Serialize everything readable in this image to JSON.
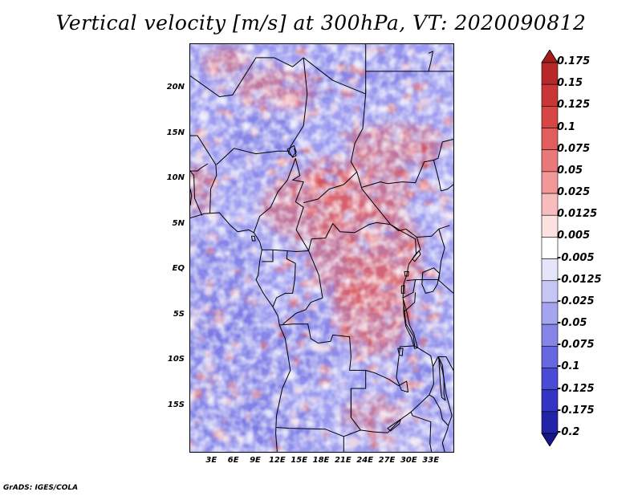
{
  "title": "Vertical velocity [m/s] at 300hPa, VT: 2020090812",
  "footer": "GrADS: IGES/COLA",
  "map": {
    "projection": "lat-lon",
    "lon_range": [
      0,
      36
    ],
    "lat_range": [
      -20,
      25
    ],
    "lat_labels": [
      "20N",
      "15N",
      "10N",
      "5N",
      "EQ",
      "5S",
      "10S",
      "15S"
    ],
    "lat_values": [
      20,
      15,
      10,
      5,
      0,
      -5,
      -10,
      -15
    ],
    "lon_labels": [
      "3E",
      "6E",
      "9E",
      "12E",
      "15E",
      "18E",
      "21E",
      "24E",
      "27E",
      "30E",
      "33E"
    ],
    "lon_values": [
      3,
      6,
      9,
      12,
      15,
      18,
      21,
      24,
      27,
      30,
      33
    ],
    "field": "vertical velocity (shaded)",
    "overlays": [
      "coastlines",
      "country borders",
      "lakes"
    ]
  },
  "colorbar": {
    "orientation": "vertical",
    "position": "right",
    "labels": [
      "0.175",
      "0.15",
      "0.125",
      "0.1",
      "0.075",
      "0.05",
      "0.025",
      "0.0125",
      "0.005",
      "-0.005",
      "-0.0125",
      "-0.025",
      "-0.05",
      "-0.075",
      "-0.1",
      "-0.125",
      "-0.175",
      "-0.2"
    ],
    "colors": [
      "#a51c1c",
      "#b82828",
      "#c93636",
      "#d84545",
      "#e25d5d",
      "#ea7878",
      "#f29898",
      "#f8bcbc",
      "#fde0e0",
      "#ffffff",
      "#e4e4fb",
      "#c6c6f5",
      "#a5a5ef",
      "#8585e8",
      "#6767e0",
      "#4a4ad6",
      "#3333c4",
      "#2323a8",
      "#15158c"
    ],
    "top_arrow_color": "#a51c1c",
    "bottom_arrow_color": "#15158c"
  }
}
